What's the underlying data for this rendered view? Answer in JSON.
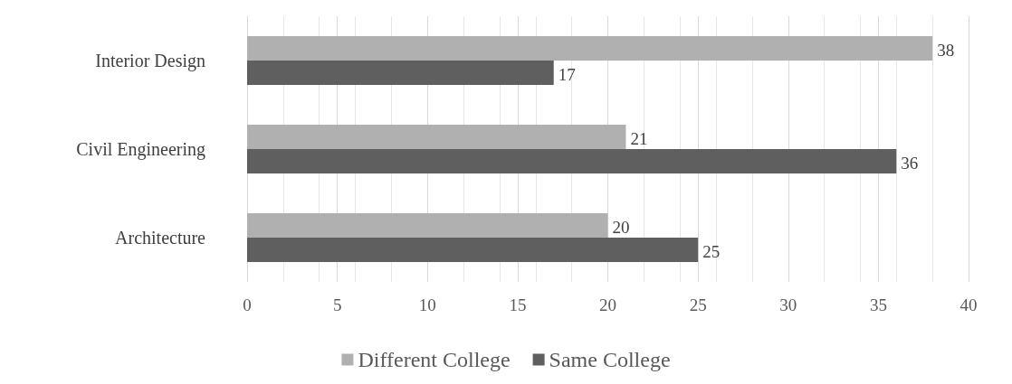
{
  "chart_data": {
    "type": "bar",
    "orientation": "horizontal",
    "categories": [
      "Interior Design",
      "Civil Engineering",
      "Architecture"
    ],
    "series": [
      {
        "name": "Different College",
        "color": "#b0b0b0",
        "values": [
          38,
          21,
          20
        ]
      },
      {
        "name": "Same College",
        "color": "#5f5f5f",
        "values": [
          17,
          36,
          25
        ]
      }
    ],
    "xlim": [
      0,
      40
    ],
    "xticks": [
      0,
      5,
      10,
      15,
      20,
      25,
      30,
      35,
      40
    ],
    "grid": "x",
    "legend": "bottom",
    "data_labels": true
  }
}
